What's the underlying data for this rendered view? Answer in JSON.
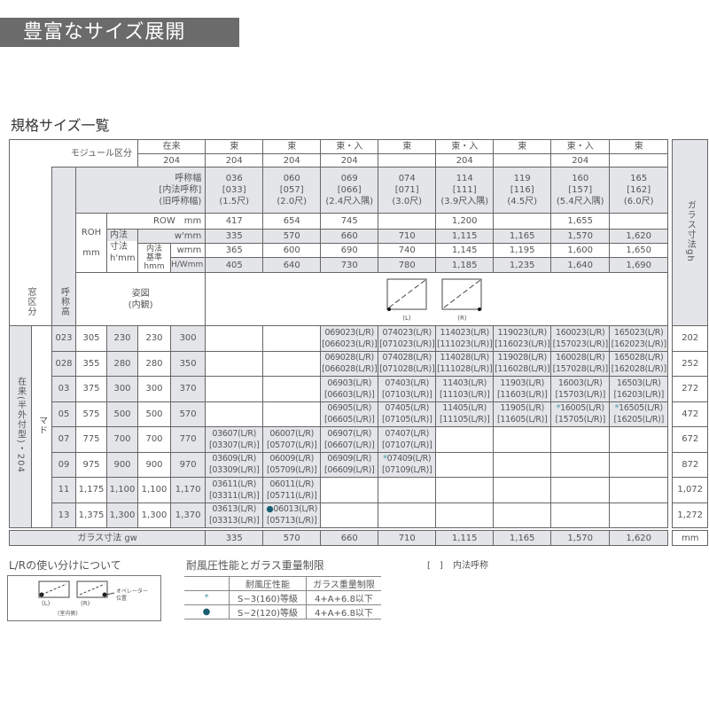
{
  "title": "豊富なサイズ展開",
  "subtitle": "規格サイズ一覧",
  "colors": {
    "title_bg": "#6b6b6b",
    "header_grey": "#e3e5e8",
    "asterisk": "#4a9aa8",
    "dot": "#1a5f73"
  },
  "header": {
    "module_label": "モジュール区分",
    "zairai": "在来",
    "zairai_204": "204",
    "modules": [
      "東",
      "東",
      "東・入",
      "東",
      "東・入",
      "東",
      "東・入",
      "東"
    ],
    "modules_204": [
      "204",
      "204",
      "204",
      "",
      "204",
      "",
      "204",
      ""
    ],
    "name_width_label": [
      "呼称幅",
      "[内法呼称]",
      "(旧呼称幅)"
    ],
    "name_width": [
      [
        "036",
        "[033]",
        "(1.5尺)"
      ],
      [
        "060",
        "[057]",
        "(2.0尺)"
      ],
      [
        "069",
        "[066]",
        "(2.4尺入隅)"
      ],
      [
        "074",
        "[071]",
        "(3.0尺)"
      ],
      [
        "114",
        "[111]",
        "(3.9尺入隅)"
      ],
      [
        "119",
        "[116]",
        "(4.5尺)"
      ],
      [
        "160",
        "[157]",
        "(5.4尺入隅)"
      ],
      [
        "165",
        "[162]",
        "(6.0尺)"
      ]
    ],
    "row_label": "ROW　mm",
    "row": [
      "417",
      "654",
      "745",
      "",
      "1,200",
      "",
      "1,655",
      ""
    ],
    "roh_label": [
      "ROH",
      "mm"
    ],
    "inner_dim_label": [
      "内法",
      "寸法",
      "h'mm"
    ],
    "w_prime_label": "w'mm",
    "w_prime": [
      "335",
      "570",
      "660",
      "710",
      "1,115",
      "1,165",
      "1,570",
      "1,620"
    ],
    "inner_std_label": [
      "内法",
      "基準",
      "hmm"
    ],
    "w_label": "wmm",
    "w": [
      "365",
      "600",
      "690",
      "740",
      "1,145",
      "1,195",
      "1,600",
      "1,650"
    ],
    "hw_label": "H/Wmm",
    "hw": [
      "405",
      "640",
      "730",
      "780",
      "1,185",
      "1,235",
      "1,640",
      "1,690"
    ],
    "figure_label": [
      "姿図",
      "(内観)"
    ],
    "figure_L": "(L)",
    "figure_R": "(R)",
    "window_class": "窓区分",
    "name_height": "呼称高",
    "glass_gh": "ガラス寸法gh"
  },
  "body": {
    "window_type": "在来(半外付型)・204",
    "category": "マド",
    "rows": [
      {
        "code": "023",
        "roh": "305",
        "h_prime": "230",
        "h": "230",
        "hw": "300",
        "gh": "202",
        "cells": [
          null,
          null,
          [
            "069023(L/R)",
            "[066023(L/R)]"
          ],
          [
            "074023(L/R)",
            "[071023(L/R)]"
          ],
          [
            "114023(L/R)",
            "[111023(L/R)]"
          ],
          [
            "119023(L/R)",
            "[116023(L/R)]"
          ],
          [
            "160023(L/R)",
            "[157023(L/R)]"
          ],
          [
            "165023(L/R)",
            "[162023(L/R)]"
          ]
        ]
      },
      {
        "code": "028",
        "roh": "355",
        "h_prime": "280",
        "h": "280",
        "hw": "350",
        "gh": "252",
        "cells": [
          null,
          null,
          [
            "069028(L/R)",
            "[066028(L/R)]"
          ],
          [
            "074028(L/R)",
            "[071028(L/R)]"
          ],
          [
            "114028(L/R)",
            "[111028(L/R)]"
          ],
          [
            "119028(L/R)",
            "[116028(L/R)]"
          ],
          [
            "160028(L/R)",
            "[157028(L/R)]"
          ],
          [
            "165028(L/R)",
            "[162028(L/R)]"
          ]
        ]
      },
      {
        "code": "03",
        "roh": "375",
        "h_prime": "300",
        "h": "300",
        "hw": "370",
        "gh": "272",
        "cells": [
          null,
          null,
          [
            "06903(L/R)",
            "[06603(L/R)]"
          ],
          [
            "07403(L/R)",
            "[07103(L/R)]"
          ],
          [
            "11403(L/R)",
            "[11103(L/R)]"
          ],
          [
            "11903(L/R)",
            "[11603(L/R)]"
          ],
          [
            "16003(L/R)",
            "[15703(L/R)]"
          ],
          [
            "16503(L/R)",
            "[16203(L/R)]"
          ]
        ]
      },
      {
        "code": "05",
        "roh": "575",
        "h_prime": "500",
        "h": "500",
        "hw": "570",
        "gh": "472",
        "cells": [
          null,
          null,
          [
            "06905(L/R)",
            "[06605(L/R)]"
          ],
          [
            "07405(L/R)",
            "[07105(L/R)]"
          ],
          [
            "11405(L/R)",
            "[11105(L/R)]"
          ],
          [
            "11905(L/R)",
            "[11605(L/R)]"
          ],
          [
            "16005(L/R)",
            "[15705(L/R)]",
            "asterisk"
          ],
          [
            "16505(L/R)",
            "[16205(L/R)]",
            "asterisk"
          ]
        ]
      },
      {
        "code": "07",
        "roh": "775",
        "h_prime": "700",
        "h": "700",
        "hw": "770",
        "gh": "672",
        "cells": [
          [
            "03607(L/R)",
            "[03307(L/R)]"
          ],
          [
            "06007(L/R)",
            "[05707(L/R)]"
          ],
          [
            "06907(L/R)",
            "[06607(L/R)]"
          ],
          [
            "07407(L/R)",
            "[07107(L/R)]"
          ],
          null,
          null,
          null,
          null
        ]
      },
      {
        "code": "09",
        "roh": "975",
        "h_prime": "900",
        "h": "900",
        "hw": "970",
        "gh": "872",
        "cells": [
          [
            "03609(L/R)",
            "[03309(L/R)]"
          ],
          [
            "06009(L/R)",
            "[05709(L/R)]"
          ],
          [
            "06909(L/R)",
            "[06609(L/R)]"
          ],
          [
            "07409(L/R)",
            "[07109(L/R)]",
            "asterisk"
          ],
          null,
          null,
          null,
          null
        ]
      },
      {
        "code": "11",
        "roh": "1,175",
        "h_prime": "1,100",
        "h": "1,100",
        "hw": "1,170",
        "gh": "1,072",
        "cells": [
          [
            "03611(L/R)",
            "[03311(L/R)]"
          ],
          [
            "06011(L/R)",
            "[05711(L/R)]"
          ],
          null,
          null,
          null,
          null,
          null,
          null
        ]
      },
      {
        "code": "13",
        "roh": "1,375",
        "h_prime": "1,300",
        "h": "1,300",
        "hw": "1,370",
        "gh": "1,272",
        "cells": [
          [
            "03613(L/R)",
            "[03313(L/R)]"
          ],
          [
            "06013(L/R)",
            "[05713(L/R)]",
            "dot"
          ],
          null,
          null,
          null,
          null,
          null,
          null
        ]
      }
    ]
  },
  "footer": {
    "label": "ガラス寸法 gw",
    "values": [
      "335",
      "570",
      "660",
      "710",
      "1,115",
      "1,165",
      "1,570",
      "1,620"
    ],
    "unit": "mm"
  },
  "lr_usage": {
    "title": "L/Rの使い分けについて",
    "L": "(L)",
    "R": "(R)",
    "indoor": "(室内側)",
    "operator": [
      "オペレーター",
      "位置"
    ]
  },
  "wind": {
    "title": "耐風圧性能とガラス重量制限",
    "headers": [
      "",
      "耐風圧性能",
      "ガラス重量制限"
    ],
    "rows": [
      {
        "mark": "asterisk",
        "symbol": "*",
        "perf": "S−3(160)等級",
        "limit": "4+A+6.8以下"
      },
      {
        "mark": "dot",
        "symbol": "●",
        "perf": "S−2(120)等級",
        "limit": "4+A+6.8以下"
      }
    ]
  },
  "note": "[　] 内法呼称"
}
